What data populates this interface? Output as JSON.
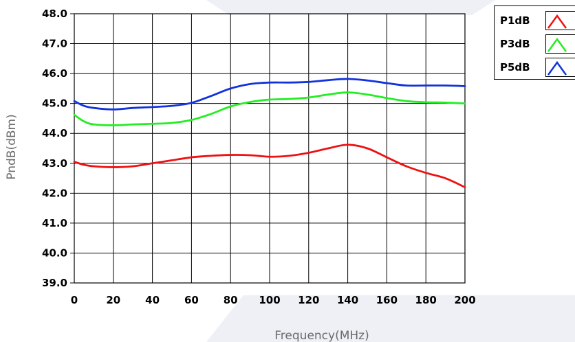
{
  "chart_data": {
    "type": "line",
    "title": "",
    "xlabel": "Frequency(MHz)",
    "ylabel": "PndB(dBm)",
    "xlim": [
      0,
      200
    ],
    "ylim": [
      39.0,
      48.0
    ],
    "x_ticks": [
      "0",
      "20",
      "40",
      "60",
      "80",
      "100",
      "120",
      "140",
      "160",
      "180",
      "200"
    ],
    "y_ticks": [
      "39.0",
      "40.0",
      "41.0",
      "42.0",
      "43.0",
      "44.0",
      "45.0",
      "46.0",
      "47.0",
      "48.0"
    ],
    "grid": true,
    "legend_position": "top-right",
    "x": [
      0,
      5,
      10,
      20,
      30,
      40,
      50,
      60,
      70,
      80,
      90,
      100,
      110,
      120,
      130,
      140,
      150,
      160,
      170,
      180,
      190,
      200
    ],
    "series": [
      {
        "name": "P1dB",
        "color": "#ee1111",
        "values": [
          43.05,
          42.95,
          42.9,
          42.87,
          42.9,
          43.0,
          43.1,
          43.2,
          43.25,
          43.28,
          43.27,
          43.22,
          43.25,
          43.35,
          43.5,
          43.62,
          43.5,
          43.2,
          42.9,
          42.68,
          42.5,
          42.2
        ]
      },
      {
        "name": "P3dB",
        "color": "#22ee22",
        "values": [
          44.62,
          44.4,
          44.3,
          44.27,
          44.3,
          44.32,
          44.35,
          44.45,
          44.65,
          44.9,
          45.05,
          45.13,
          45.15,
          45.2,
          45.3,
          45.37,
          45.3,
          45.18,
          45.08,
          45.04,
          45.03,
          45.0
        ]
      },
      {
        "name": "P5dB",
        "color": "#1133dd",
        "values": [
          45.08,
          44.92,
          44.85,
          44.8,
          44.85,
          44.88,
          44.92,
          45.02,
          45.25,
          45.5,
          45.65,
          45.7,
          45.7,
          45.72,
          45.78,
          45.82,
          45.77,
          45.68,
          45.6,
          45.6,
          45.6,
          45.58
        ]
      }
    ]
  },
  "legend": {
    "items": [
      {
        "label": "P1dB",
        "color": "#ee1111"
      },
      {
        "label": "P3dB",
        "color": "#22ee22"
      },
      {
        "label": "P5dB",
        "color": "#1133dd"
      }
    ]
  },
  "colors": {
    "background_shape": "#eef0f6",
    "grid": "#000000"
  }
}
